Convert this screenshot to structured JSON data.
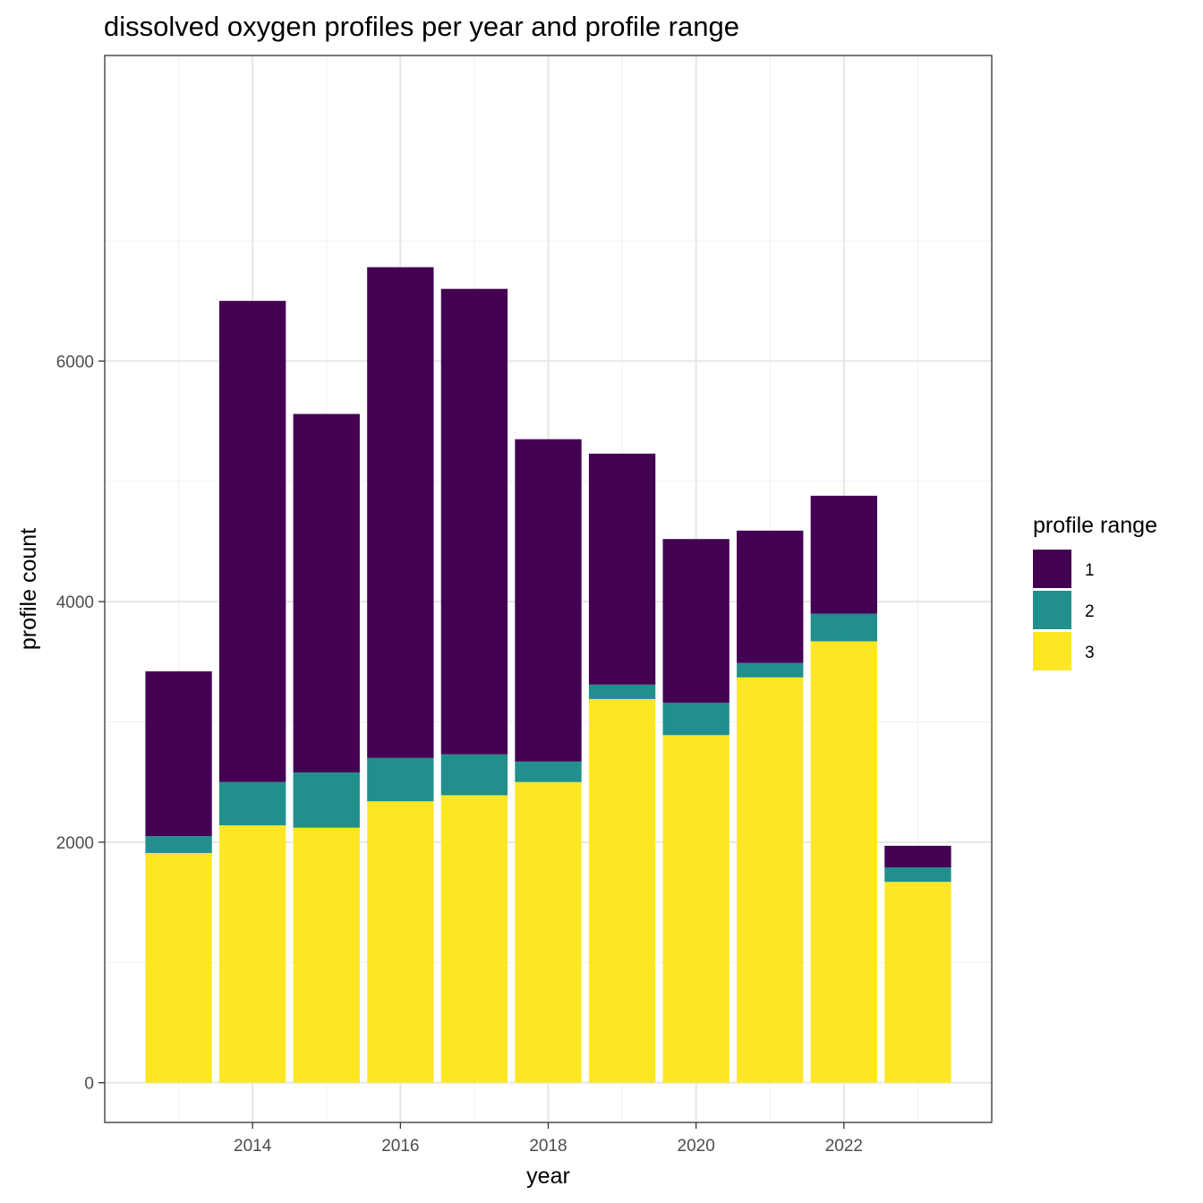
{
  "chart_data": {
    "type": "bar",
    "stacked": true,
    "title": "dissolved oxygen profiles per year and profile range",
    "xlabel": "year",
    "ylabel": "profile count",
    "x_ticks": [
      2014,
      2016,
      2018,
      2020,
      2022
    ],
    "y_ticks": [
      0,
      2000,
      4000,
      6000
    ],
    "xlim": [
      2012.0,
      2024.0
    ],
    "ylim": [
      -330,
      8540
    ],
    "grid": true,
    "legend_title": "profile range",
    "legend_position": "right",
    "categories": [
      2013,
      2014,
      2015,
      2016,
      2017,
      2018,
      2019,
      2020,
      2021,
      2022,
      2023
    ],
    "series": [
      {
        "name": "3",
        "color": "#FDE725",
        "values": [
          1910,
          2140,
          2120,
          2340,
          2390,
          2500,
          3190,
          2890,
          3370,
          3670,
          1670
        ]
      },
      {
        "name": "2",
        "color": "#21908C",
        "values": [
          140,
          360,
          460,
          360,
          340,
          170,
          120,
          270,
          120,
          230,
          120
        ]
      },
      {
        "name": "1",
        "color": "#440154",
        "values": [
          1370,
          4000,
          2980,
          4080,
          3870,
          2680,
          1920,
          1360,
          1100,
          980,
          180
        ]
      }
    ]
  }
}
